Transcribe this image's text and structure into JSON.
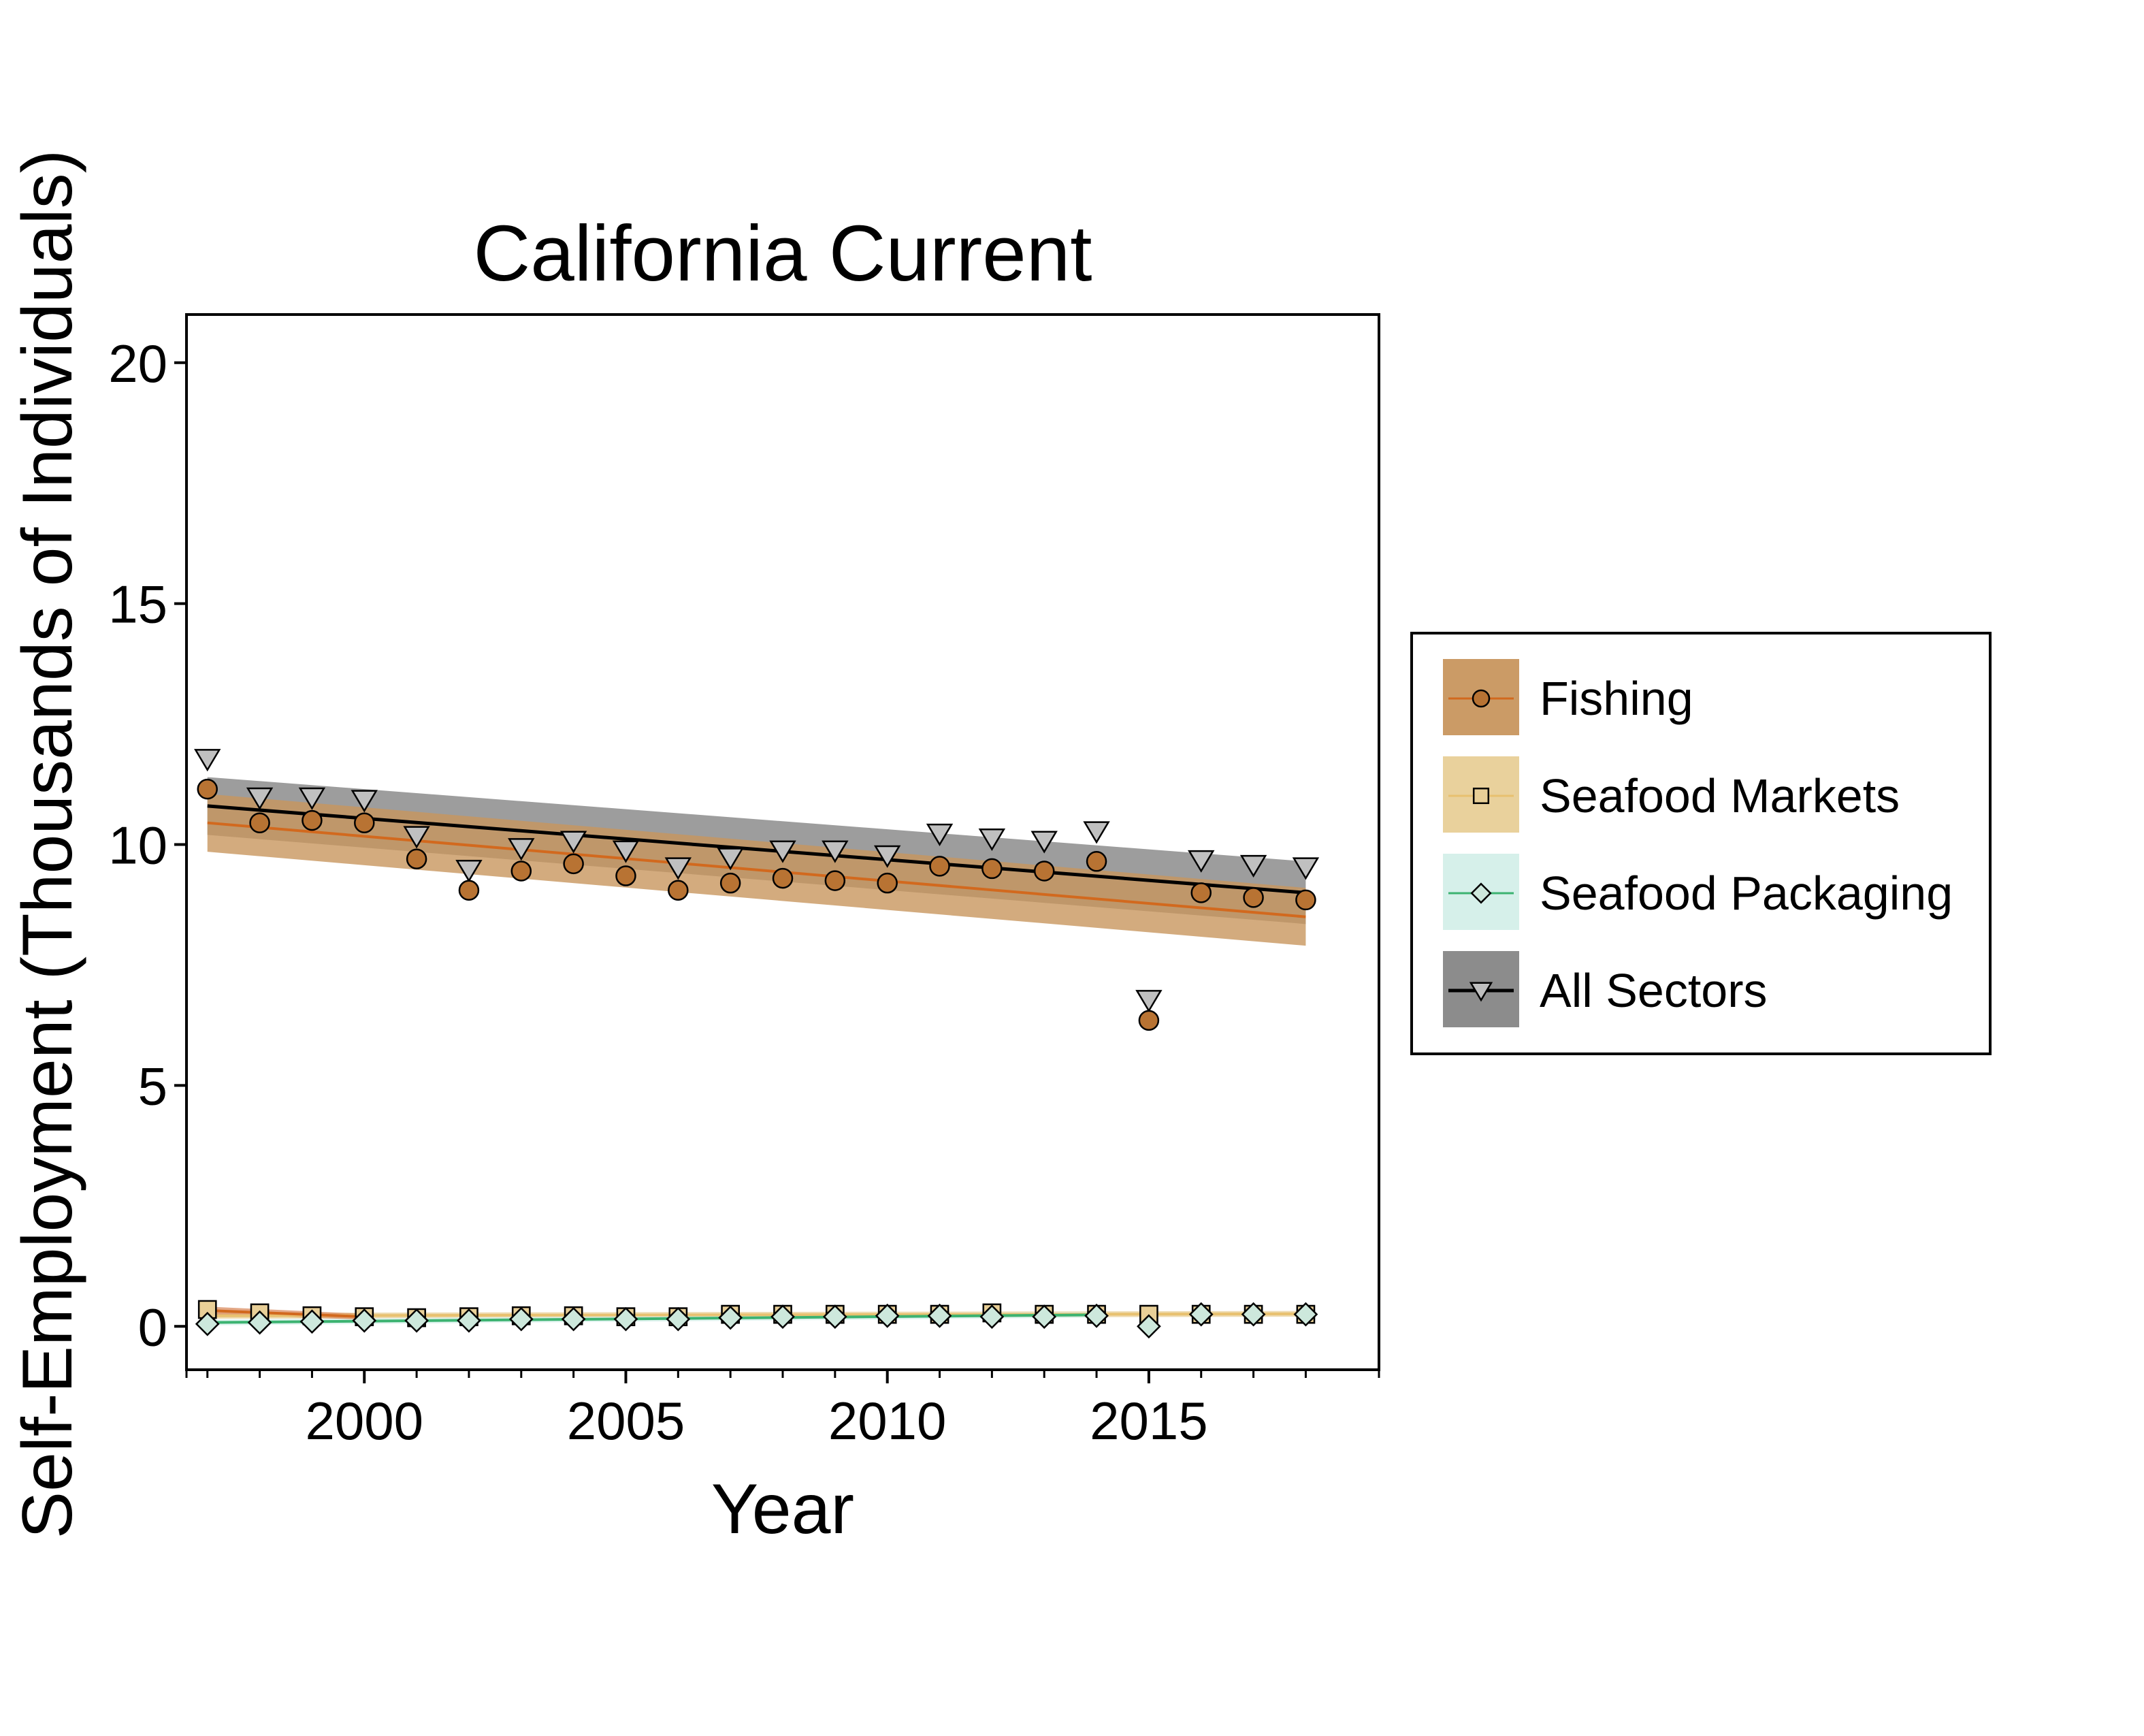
{
  "chart_data": {
    "type": "scatter",
    "title": "California Current",
    "xlabel": "Year",
    "ylabel": "Self-Employment (Thousands of Individuals)",
    "xlim": [
      1996.6,
      2019.4
    ],
    "ylim": [
      -0.9,
      21.0
    ],
    "xticks_major": [
      2000,
      2005,
      2010,
      2015
    ],
    "xticks_minor": [
      1997,
      1998,
      1999,
      2001,
      2002,
      2003,
      2004,
      2006,
      2007,
      2008,
      2009,
      2011,
      2012,
      2013,
      2014,
      2016,
      2017,
      2018
    ],
    "yticks": [
      0,
      5,
      10,
      15,
      20
    ],
    "grid": false,
    "legend_position": "right",
    "series": [
      {
        "name": "Fishing",
        "marker": "circle",
        "color": "#b87333",
        "line_color": "#d2691e",
        "band_color": "#c8965e",
        "x": [
          1997,
          1998,
          1999,
          2000,
          2001,
          2002,
          2003,
          2004,
          2005,
          2006,
          2007,
          2008,
          2009,
          2010,
          2011,
          2012,
          2013,
          2014,
          2015,
          2016,
          2017,
          2018
        ],
        "y": [
          11.15,
          10.45,
          10.5,
          10.45,
          9.7,
          9.05,
          9.45,
          9.6,
          9.35,
          9.05,
          9.2,
          9.3,
          9.25,
          9.2,
          9.55,
          9.5,
          9.45,
          9.65,
          6.35,
          9.0,
          8.9,
          8.85
        ],
        "trend": {
          "x": [
            1997,
            2018
          ],
          "y": [
            10.45,
            8.5
          ],
          "lower": [
            9.85,
            7.9
          ],
          "upper": [
            11.05,
            9.1
          ]
        }
      },
      {
        "name": "Seafood Markets",
        "marker": "square",
        "color": "#e8cf97",
        "line_color": "#e8c170",
        "band_color": "#e8cf97",
        "x": [
          1997,
          1998,
          1999,
          2000,
          2001,
          2002,
          2003,
          2004,
          2005,
          2006,
          2007,
          2008,
          2009,
          2010,
          2011,
          2012,
          2013,
          2014,
          2015,
          2016,
          2017,
          2018
        ],
        "y": [
          0.35,
          0.28,
          0.22,
          0.2,
          0.18,
          0.2,
          0.22,
          0.22,
          0.2,
          0.2,
          0.25,
          0.25,
          0.25,
          0.25,
          0.25,
          0.28,
          0.25,
          0.25,
          0.25,
          0.25,
          0.25,
          0.25
        ],
        "trend": {
          "x": [
            1997,
            2018
          ],
          "y": [
            0.22,
            0.26
          ],
          "lower": [
            0.16,
            0.2
          ],
          "upper": [
            0.28,
            0.32
          ]
        }
      },
      {
        "name": "Seafood Packaging",
        "marker": "diamond",
        "color": "#cde8dc",
        "line_color": "#3cb371",
        "band_color": "#d4efe9",
        "x": [
          1997,
          1998,
          1999,
          2000,
          2001,
          2002,
          2003,
          2004,
          2005,
          2006,
          2007,
          2008,
          2009,
          2010,
          2011,
          2012,
          2013,
          2014,
          2015,
          2016,
          2017,
          2018
        ],
        "y": [
          0.05,
          0.08,
          0.1,
          0.12,
          0.12,
          0.12,
          0.15,
          0.15,
          0.15,
          0.15,
          0.18,
          0.2,
          0.2,
          0.22,
          0.22,
          0.2,
          0.2,
          0.22,
          0.0,
          0.25,
          0.25,
          0.25
        ],
        "trend": {
          "x": [
            1997,
            2014
          ],
          "y": [
            0.08,
            0.24
          ],
          "lower": [
            0.02,
            0.18
          ],
          "upper": [
            0.14,
            0.3
          ]
        }
      },
      {
        "name": "All Sectors",
        "marker": "triangle-down",
        "color": "#c0c0c0",
        "line_color": "#000000",
        "band_color": "#8c8c8c",
        "x": [
          1997,
          1998,
          1999,
          2000,
          2001,
          2002,
          2003,
          2004,
          2005,
          2006,
          2007,
          2008,
          2009,
          2010,
          2011,
          2012,
          2013,
          2014,
          2015,
          2016,
          2017,
          2018
        ],
        "y": [
          11.55,
          10.75,
          10.75,
          10.7,
          9.95,
          9.25,
          9.7,
          9.85,
          9.65,
          9.3,
          9.5,
          9.65,
          9.65,
          9.55,
          10.0,
          9.9,
          9.85,
          10.05,
          6.55,
          9.45,
          9.35,
          9.3
        ],
        "trend": {
          "x": [
            1997,
            2018
          ],
          "y": [
            10.8,
            9.0
          ],
          "lower": [
            10.2,
            8.35
          ],
          "upper": [
            11.4,
            9.65
          ]
        }
      }
    ],
    "extra_trends": [
      {
        "series": "Fishing",
        "color": "#d2691e",
        "band_color": "#d98b5f",
        "x": [
          1997,
          2000
        ],
        "y": [
          0.33,
          0.2
        ],
        "lower": [
          0.25,
          0.14
        ],
        "upper": [
          0.41,
          0.26
        ]
      }
    ]
  }
}
